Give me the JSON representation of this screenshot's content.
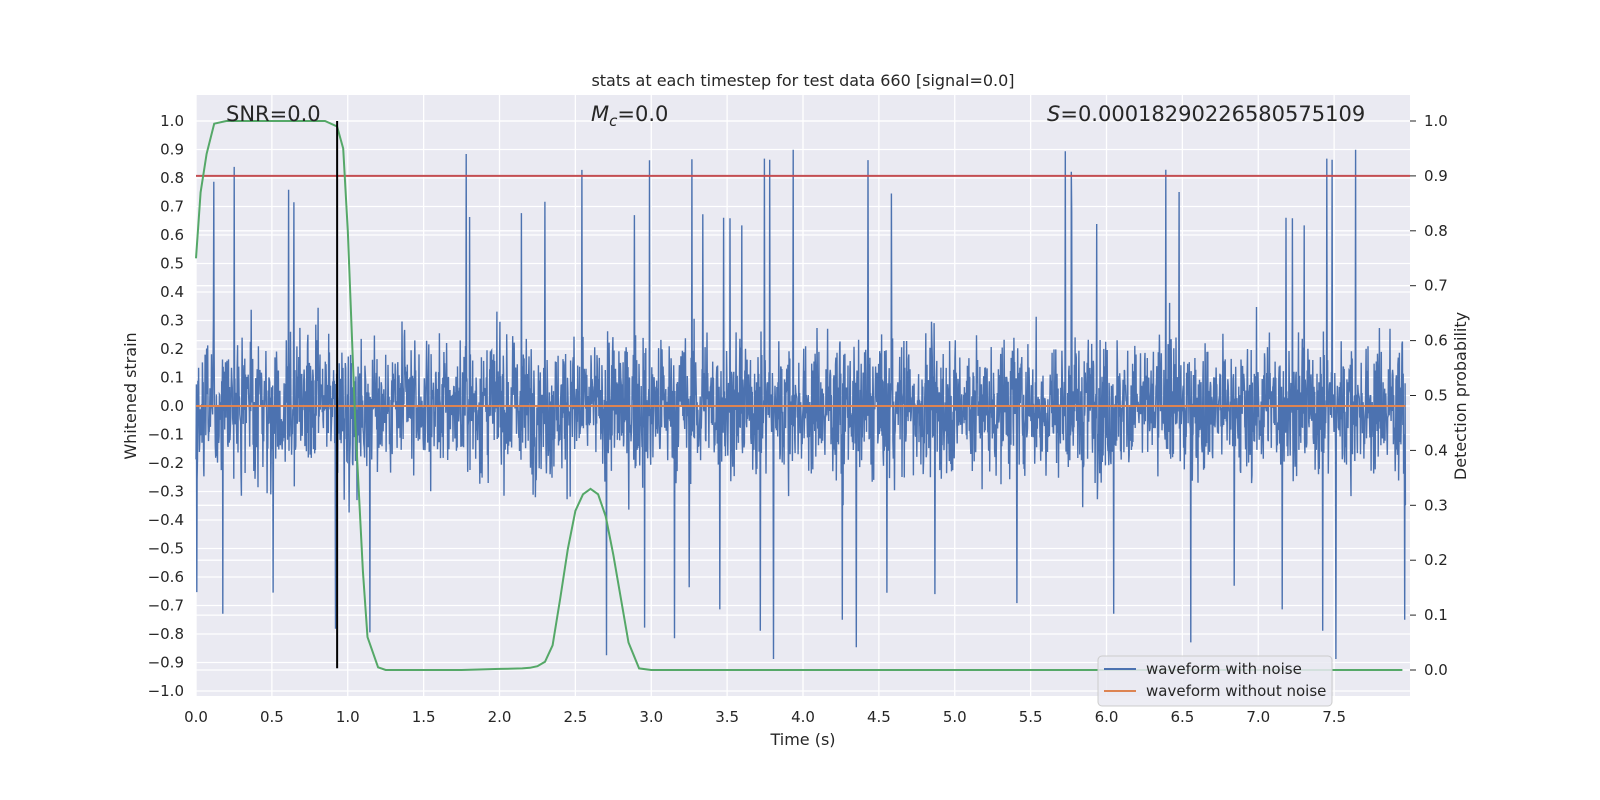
{
  "chart_data": {
    "type": "line",
    "title": "stats at each timestep for test data 660 [signal=0.0]",
    "xlabel": "Time (s)",
    "ylabel_left": "Whitened strain",
    "ylabel_right": "Detection probability",
    "xlim": [
      0.0,
      8.0
    ],
    "ylim_left": [
      -1.05,
      1.05
    ],
    "ylim_right": [
      -0.05,
      1.05
    ],
    "xticks": [
      "0.0",
      "0.5",
      "1.0",
      "1.5",
      "2.0",
      "2.5",
      "3.0",
      "3.5",
      "4.0",
      "4.5",
      "5.0",
      "5.5",
      "6.0",
      "6.5",
      "7.0",
      "7.5"
    ],
    "yticks_left": [
      "1.0",
      "0.9",
      "0.8",
      "0.7",
      "0.6",
      "0.5",
      "0.4",
      "0.3",
      "0.2",
      "0.1",
      "0.0",
      "-0.1",
      "-0.2",
      "-0.3",
      "-0.4",
      "-0.5",
      "-0.6",
      "-0.7",
      "-0.8",
      "-0.9",
      "-1.0"
    ],
    "yticks_right": [
      "1.0",
      "0.9",
      "0.8",
      "0.7",
      "0.6",
      "0.5",
      "0.4",
      "0.3",
      "0.2",
      "0.1",
      "0.0"
    ],
    "grid": true,
    "annotations": {
      "snr": "SNR=0.0",
      "mc_symbol": "M",
      "mc_sub": "c",
      "mc_value": "=0.0",
      "s_symbol": "S",
      "s_value": "=0.00018290226580575109"
    },
    "series": [
      {
        "name": "waveform with noise",
        "axis": "left",
        "color": "#4c72b0",
        "description_values": {
          "approx_envelope_max": 1.0,
          "approx_envelope_min": -0.92,
          "typical_amplitude": 0.45
        }
      },
      {
        "name": "waveform without noise",
        "axis": "left",
        "color": "#dd8452",
        "x": [
          0.0,
          7.97
        ],
        "y": [
          0.0,
          0.0
        ]
      },
      {
        "name": "detection probability",
        "axis": "right",
        "color": "#55a868",
        "x": [
          0.0,
          0.03,
          0.07,
          0.12,
          0.2,
          0.5,
          0.85,
          0.93,
          0.97,
          1.0,
          1.05,
          1.1,
          1.13,
          1.2,
          1.25,
          1.5,
          1.75,
          2.0,
          2.15,
          2.2,
          2.25,
          2.3,
          2.35,
          2.4,
          2.45,
          2.5,
          2.55,
          2.6,
          2.65,
          2.7,
          2.75,
          2.8,
          2.85,
          2.92,
          3.0,
          4.0,
          5.0,
          6.0,
          7.0,
          7.95
        ],
        "y": [
          0.75,
          0.87,
          0.94,
          0.995,
          1.0,
          1.0,
          1.0,
          0.99,
          0.95,
          0.8,
          0.45,
          0.18,
          0.06,
          0.005,
          0.0,
          0.0,
          0.0,
          0.002,
          0.003,
          0.004,
          0.007,
          0.015,
          0.045,
          0.13,
          0.22,
          0.29,
          0.32,
          0.33,
          0.32,
          0.28,
          0.21,
          0.13,
          0.05,
          0.003,
          0.0,
          0.0,
          0.0,
          0.0,
          0.0,
          0.0
        ]
      },
      {
        "name": "threshold",
        "axis": "right",
        "color": "#c44e52",
        "y_value": 0.9
      },
      {
        "name": "marker",
        "axis": "left",
        "color": "#000000",
        "x_value": 0.93,
        "y_range": [
          -0.92,
          1.0
        ]
      }
    ],
    "legend": {
      "position": "lower-right",
      "entries": [
        {
          "label": "waveform with noise",
          "color": "#4c72b0"
        },
        {
          "label": "waveform without noise",
          "color": "#dd8452"
        }
      ]
    }
  }
}
